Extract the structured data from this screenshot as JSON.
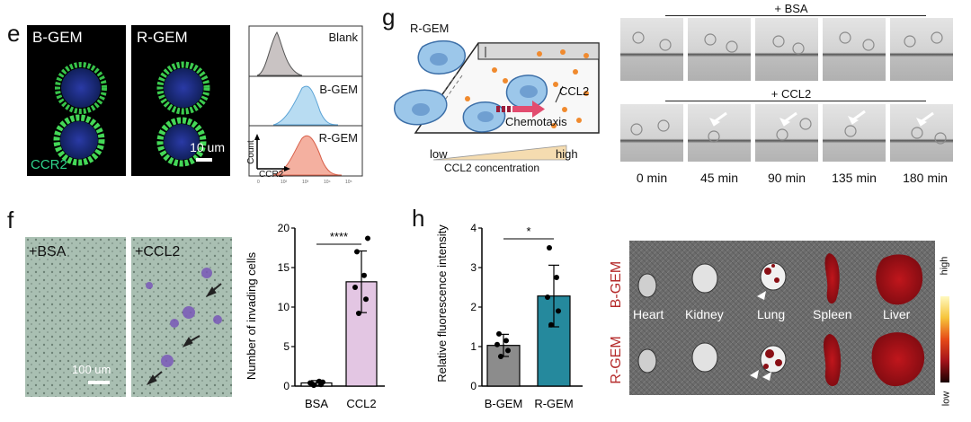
{
  "panel_e": {
    "label": "e",
    "img1_label": "B-GEM",
    "img2_label": "R-GEM",
    "channel_label": "CCR2",
    "scale_label": "10 um",
    "flow_rows": [
      "Blank",
      "B-GEM",
      "R-GEM"
    ],
    "flow_axis_y": "Count",
    "flow_axis_x": "CCR2"
  },
  "panel_g": {
    "label": "g",
    "cell_label": "R-GEM",
    "chemokine_label": "CCL2",
    "arrow_label": "Chemotaxis",
    "gradient_low": "low",
    "gradient_high": "high",
    "gradient_caption": "CCL2 concentration",
    "row1_label": "+ BSA",
    "row2_label": "+ CCL2",
    "timepoints": [
      "0 min",
      "45 min",
      "90 min",
      "135 min",
      "180 min"
    ]
  },
  "panel_f": {
    "label": "f",
    "img1_label": "+BSA",
    "img2_label": "+CCL2",
    "scale_label": "100 um"
  },
  "panel_h": {
    "label": "h",
    "organs": [
      "Heart",
      "Kidney",
      "Lung",
      "Spleen",
      "Liver"
    ],
    "row1_label": "B-GEM",
    "row2_label": "R-GEM",
    "colorbar_high": "high",
    "colorbar_low": "low"
  },
  "chart_data": [
    {
      "type": "bar",
      "title": "",
      "xlabel": "",
      "ylabel": "Number of invading cells",
      "categories": [
        "BSA",
        "CCL2"
      ],
      "values": [
        0.4,
        13.2
      ],
      "errors": [
        0.3,
        3.9
      ],
      "points": [
        [
          0.1,
          0.2,
          0.4,
          0.6,
          0.3,
          0.5
        ],
        [
          9.2,
          11.0,
          12.5,
          14.0,
          17.0,
          18.7
        ]
      ],
      "ylim": [
        0,
        20
      ],
      "yticks": [
        "0",
        "5",
        "10",
        "15",
        "20"
      ],
      "significance": "****",
      "colors": [
        "#ffffff",
        "#e3c6e3"
      ]
    },
    {
      "type": "bar",
      "title": "",
      "xlabel": "",
      "ylabel": "Relative fluorescence intensity",
      "categories": [
        "B-GEM",
        "R-GEM"
      ],
      "values": [
        1.03,
        2.28
      ],
      "errors": [
        0.28,
        0.78
      ],
      "points": [
        [
          0.75,
          0.9,
          1.05,
          1.15,
          1.32
        ],
        [
          1.55,
          1.9,
          2.25,
          2.75,
          3.5
        ]
      ],
      "ylim": [
        0,
        4
      ],
      "yticks": [
        "0",
        "1",
        "2",
        "3",
        "4"
      ],
      "significance": "*",
      "colors": [
        "#8c8c8c",
        "#25899d"
      ]
    }
  ]
}
